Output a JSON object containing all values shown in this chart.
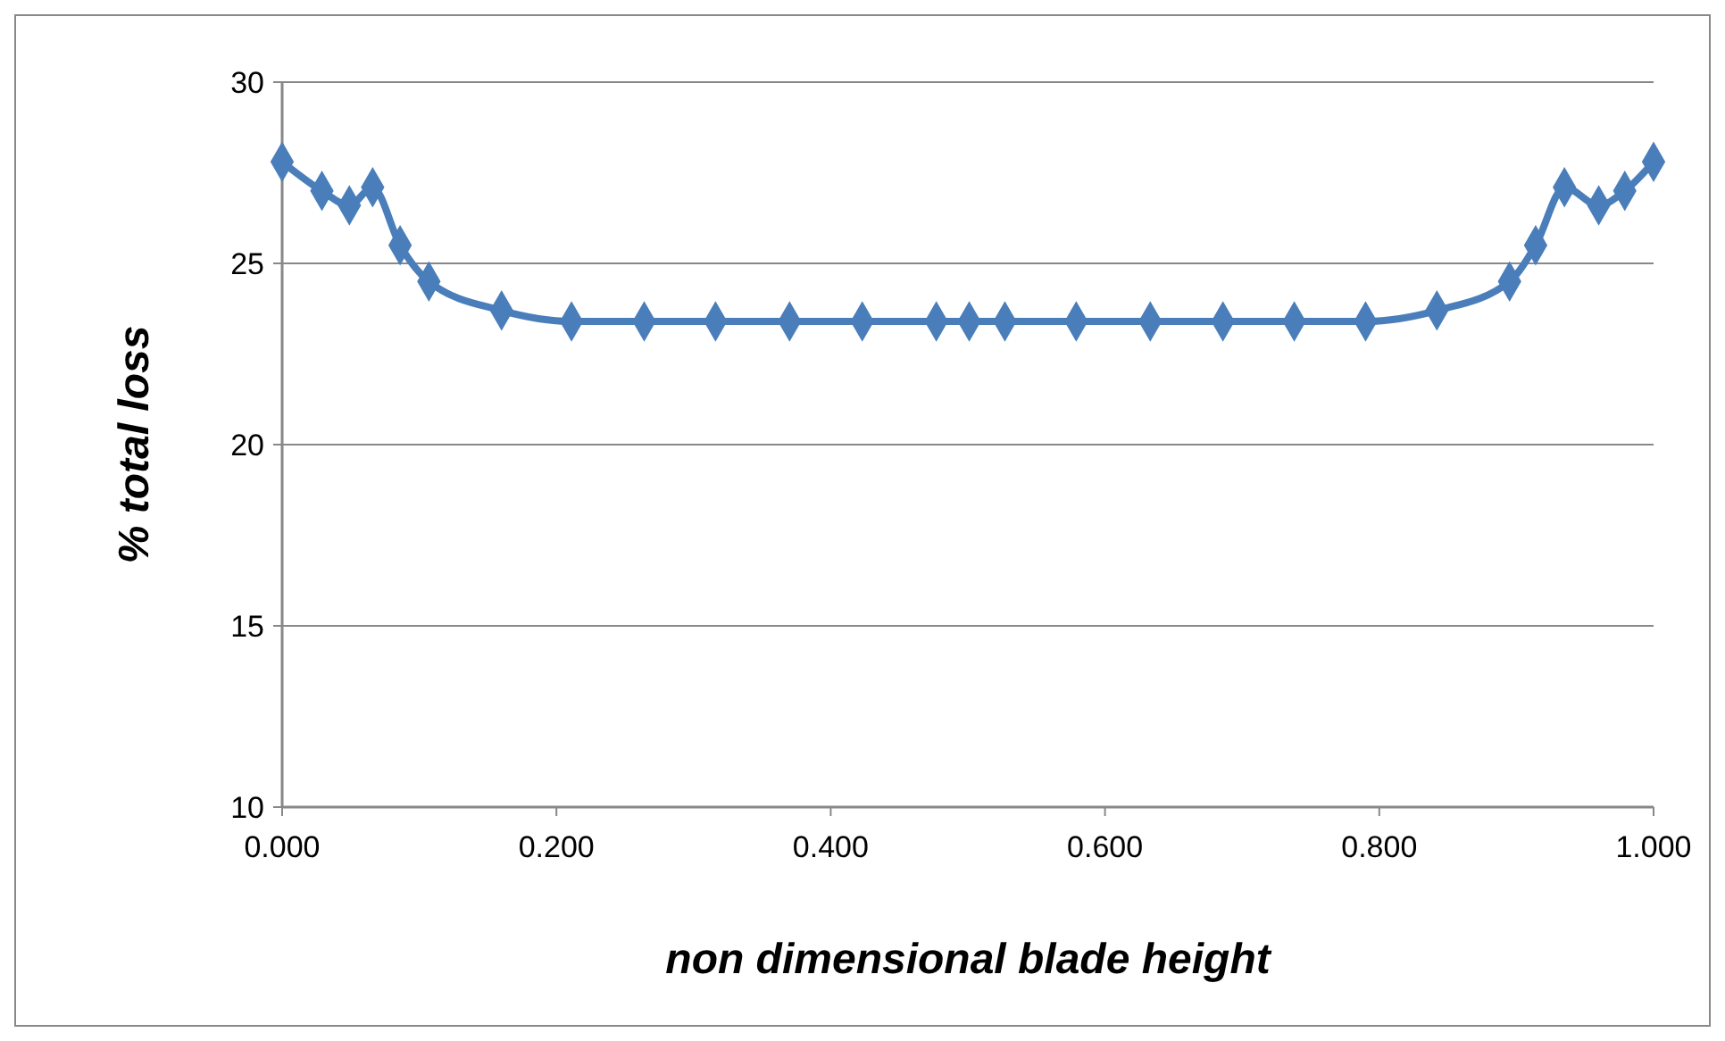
{
  "chart_data": {
    "type": "line",
    "xlabel": "non dimensional blade height",
    "ylabel": "% total loss",
    "x": [
      0,
      0.029,
      0.049,
      0.066,
      0.086,
      0.107,
      0.16,
      0.211,
      0.264,
      0.316,
      0.37,
      0.423,
      0.477,
      0.501,
      0.527,
      0.579,
      0.633,
      0.686,
      0.738,
      0.79,
      0.842,
      0.895,
      0.914,
      0.935,
      0.96,
      0.979,
      1
    ],
    "series": [
      {
        "color": "#4a7ebb",
        "values": [
          27.8,
          27.0,
          26.6,
          27.1,
          25.5,
          24.5,
          23.7,
          23.4,
          23.4,
          23.4,
          23.4,
          23.4,
          23.4,
          23.4,
          23.4,
          23.4,
          23.4,
          23.4,
          23.4,
          23.4,
          23.7,
          24.5,
          25.5,
          27.1,
          26.6,
          27.0,
          27.8
        ]
      }
    ],
    "xlim": [
      0,
      1
    ],
    "xticks": [
      {
        "value": 0,
        "label": "0.000"
      },
      {
        "value": 0.2,
        "label": "0.200"
      },
      {
        "value": 0.4,
        "label": "0.400"
      },
      {
        "value": 0.6,
        "label": "0.600"
      },
      {
        "value": 0.8,
        "label": "0.800"
      },
      {
        "value": 1,
        "label": "1.000"
      }
    ],
    "ylim": [
      10,
      30
    ],
    "yticks": [
      10,
      15,
      20,
      25,
      30
    ],
    "grid": "y",
    "marker": "diamond",
    "line_style": "solid"
  }
}
